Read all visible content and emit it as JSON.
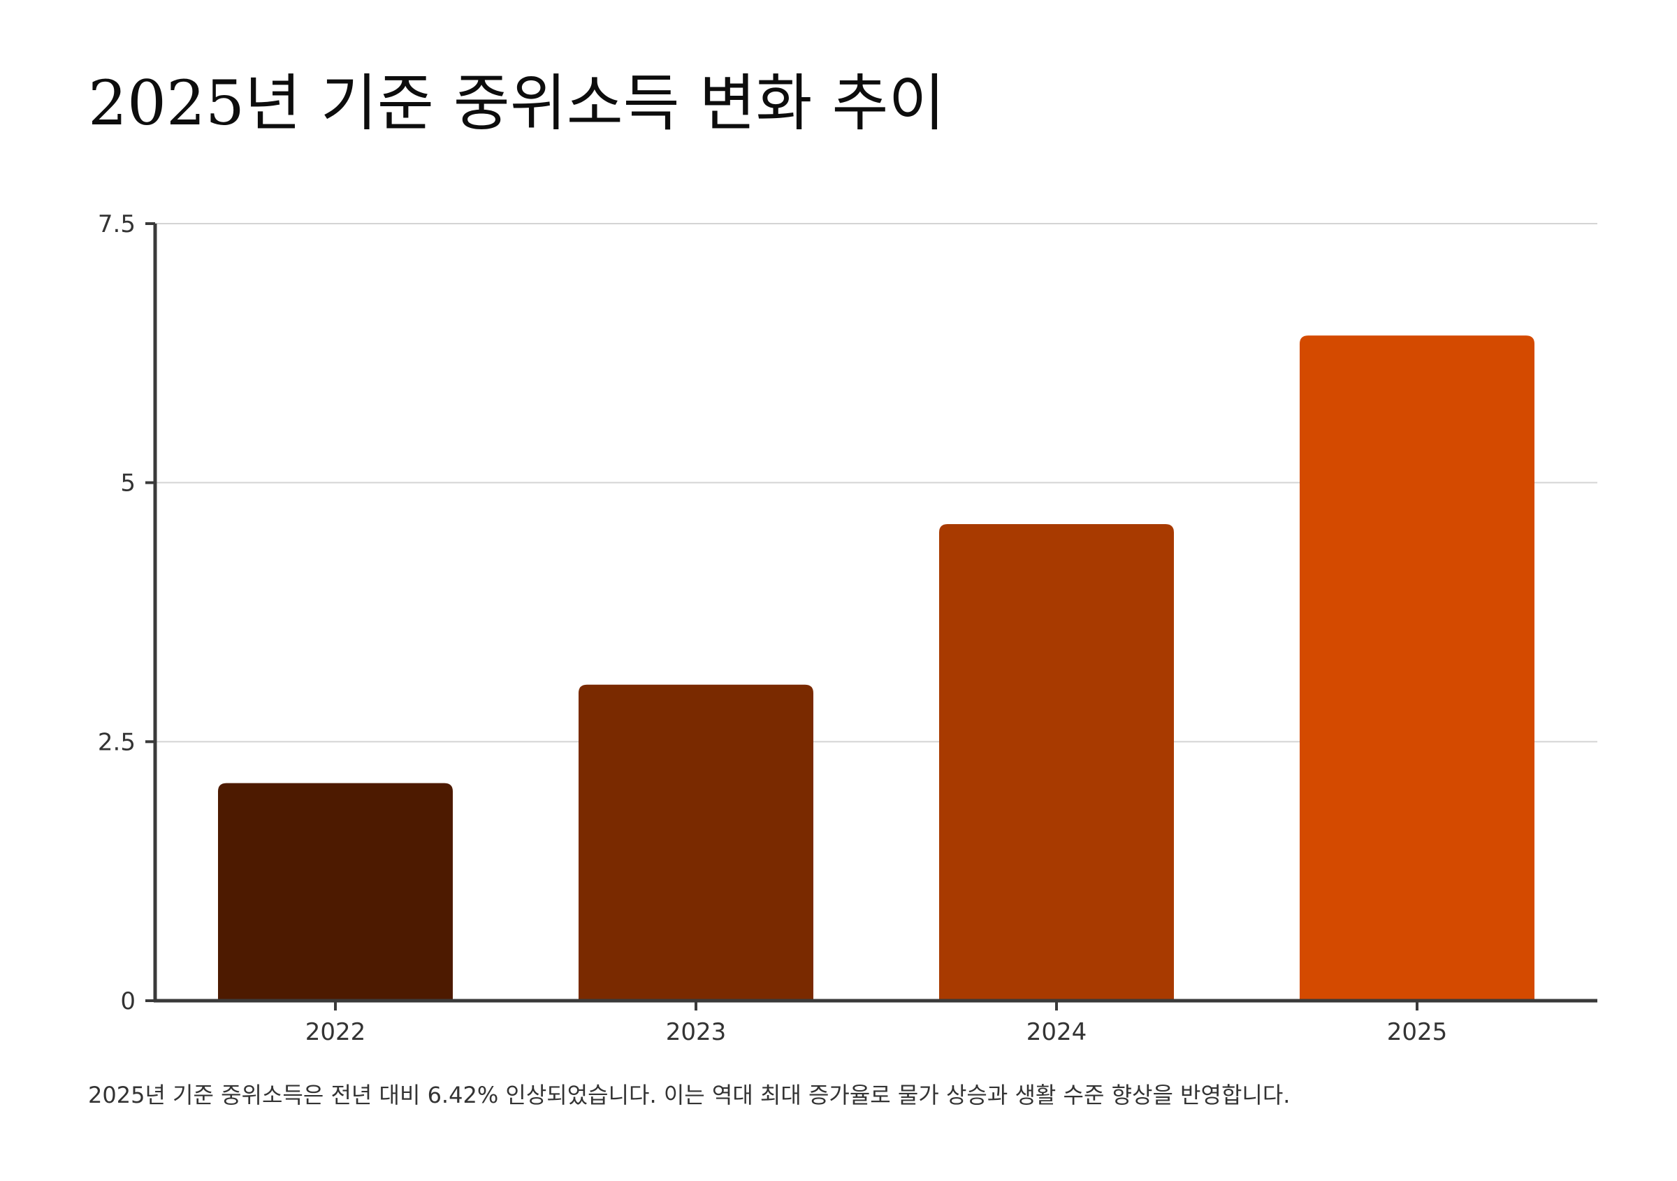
{
  "title": "2025년 기준 중위소득 변화 추이",
  "caption": "2025년 기준 중위소득은 전년 대비 6.42% 인상되었습니다. 이는 역대 최대 증가율로 물가 상승과 생활 수준 향상을 반영합니다.",
  "colors": {
    "gridline": "#d4d4d4",
    "axis": "#3a3a3a",
    "bars": [
      "#4d1a00",
      "#7a2a00",
      "#a83a00",
      "#d44a00"
    ]
  },
  "chart_data": {
    "type": "bar",
    "title": "2025년 기준 중위소득 변화 추이",
    "xlabel": "",
    "ylabel": "",
    "categories": [
      "2022",
      "2023",
      "2024",
      "2025"
    ],
    "values": [
      2.1,
      3.05,
      4.6,
      6.42
    ],
    "ylim": [
      0,
      7.5
    ],
    "yticks": [
      0,
      2.5,
      5,
      7.5
    ],
    "ytick_labels": [
      "0",
      "2.5",
      "5",
      "7.5"
    ],
    "grid": true,
    "legend": "none"
  }
}
